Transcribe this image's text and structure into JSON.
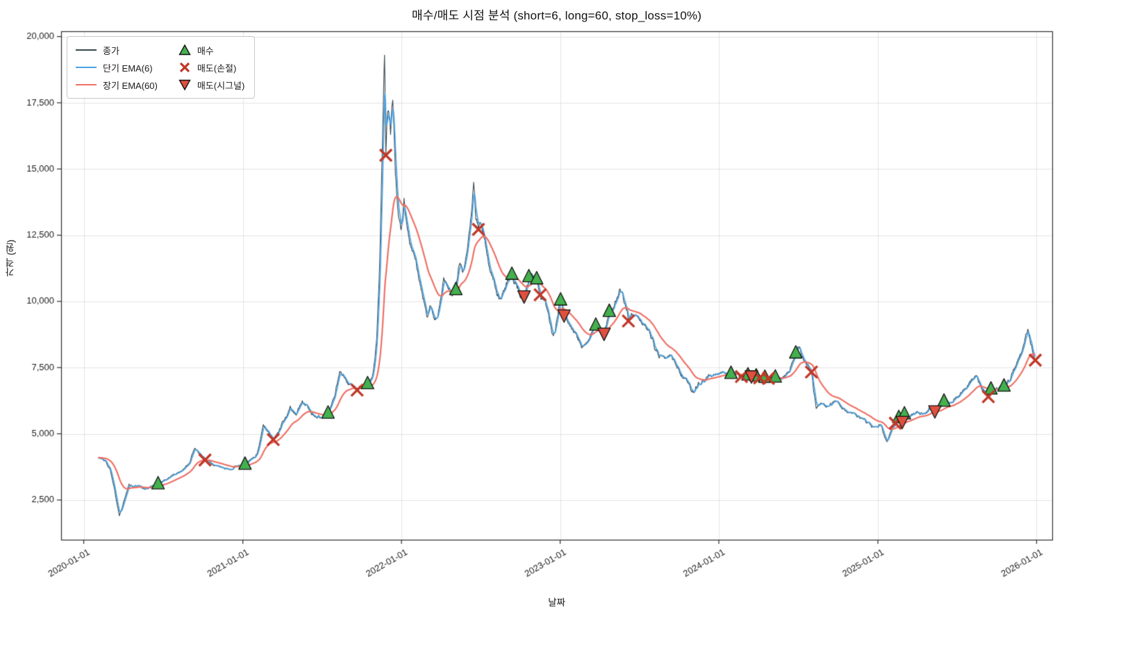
{
  "chart_data": {
    "type": "line",
    "title": "매수/매도 시점 분석 (short=6, long=60, stop_loss=10%)",
    "xlabel": "날짜",
    "ylabel": "가격 (원)",
    "xlim": [
      "2019-11-10",
      "2026-02-06"
    ],
    "ylim": [
      1000,
      20200
    ],
    "grid": true,
    "legend_position": "upper-left",
    "x_ticks": [
      {
        "v": "2020-01-01",
        "label": "2020-01-01"
      },
      {
        "v": "2021-01-01",
        "label": "2021-01-01"
      },
      {
        "v": "2022-01-01",
        "label": "2022-01-01"
      },
      {
        "v": "2023-01-01",
        "label": "2023-01-01"
      },
      {
        "v": "2024-01-01",
        "label": "2024-01-01"
      },
      {
        "v": "2025-01-01",
        "label": "2025-01-01"
      },
      {
        "v": "2026-01-01",
        "label": "2026-01-01"
      }
    ],
    "y_ticks": [
      {
        "v": 2500,
        "label": "2,500"
      },
      {
        "v": 5000,
        "label": "5,000"
      },
      {
        "v": 7500,
        "label": "7,500"
      },
      {
        "v": 10000,
        "label": "10,000"
      },
      {
        "v": 12500,
        "label": "12,500"
      },
      {
        "v": 15000,
        "label": "15,000"
      },
      {
        "v": 17500,
        "label": "17,500"
      },
      {
        "v": 20000,
        "label": "20,000"
      }
    ],
    "series": [
      {
        "id": "close",
        "name": "종가",
        "color": "#37474f",
        "width": 1.1,
        "kind": "price",
        "anchors": [
          [
            "2020-02-03",
            4100
          ],
          [
            "2020-02-12",
            4050
          ],
          [
            "2020-02-20",
            3980
          ],
          [
            "2020-03-02",
            3650
          ],
          [
            "2020-03-12",
            2900
          ],
          [
            "2020-03-23",
            1900
          ],
          [
            "2020-04-02",
            2450
          ],
          [
            "2020-04-14",
            3100
          ],
          [
            "2020-04-24",
            2980
          ],
          [
            "2020-05-08",
            3050
          ],
          [
            "2020-05-20",
            2900
          ],
          [
            "2020-06-03",
            3020
          ],
          [
            "2020-06-20",
            3120
          ],
          [
            "2020-07-03",
            3250
          ],
          [
            "2020-07-16",
            3350
          ],
          [
            "2020-08-01",
            3500
          ],
          [
            "2020-08-16",
            3650
          ],
          [
            "2020-09-01",
            3900
          ],
          [
            "2020-09-12",
            4450
          ],
          [
            "2020-09-22",
            4250
          ],
          [
            "2020-10-06",
            4010
          ],
          [
            "2020-10-18",
            3920
          ],
          [
            "2020-11-01",
            3800
          ],
          [
            "2020-11-15",
            3720
          ],
          [
            "2020-12-01",
            3650
          ],
          [
            "2020-12-16",
            3780
          ],
          [
            "2021-01-06",
            3860
          ],
          [
            "2021-01-20",
            4050
          ],
          [
            "2021-02-03",
            4250
          ],
          [
            "2021-02-17",
            5350
          ],
          [
            "2021-02-24",
            5150
          ],
          [
            "2021-03-12",
            4780
          ],
          [
            "2021-03-24",
            5050
          ],
          [
            "2021-04-06",
            5500
          ],
          [
            "2021-04-20",
            6050
          ],
          [
            "2021-05-04",
            5700
          ],
          [
            "2021-05-18",
            6250
          ],
          [
            "2021-06-01",
            5950
          ],
          [
            "2021-06-15",
            5650
          ],
          [
            "2021-07-01",
            5600
          ],
          [
            "2021-07-16",
            5790
          ],
          [
            "2021-08-01",
            6450
          ],
          [
            "2021-08-12",
            7350
          ],
          [
            "2021-08-24",
            7100
          ],
          [
            "2021-09-07",
            6900
          ],
          [
            "2021-09-21",
            6650
          ],
          [
            "2021-10-05",
            6800
          ],
          [
            "2021-10-15",
            6900
          ],
          [
            "2021-10-26",
            7150
          ],
          [
            "2021-11-05",
            8600
          ],
          [
            "2021-11-12",
            11500
          ],
          [
            "2021-11-18",
            15800
          ],
          [
            "2021-11-23",
            19300
          ],
          [
            "2021-11-26",
            15520
          ],
          [
            "2021-12-01",
            17200
          ],
          [
            "2021-12-07",
            16300
          ],
          [
            "2021-12-12",
            17600
          ],
          [
            "2021-12-18",
            14800
          ],
          [
            "2021-12-24",
            13400
          ],
          [
            "2021-12-31",
            12700
          ],
          [
            "2022-01-07",
            13900
          ],
          [
            "2022-01-14",
            12800
          ],
          [
            "2022-01-22",
            12100
          ],
          [
            "2022-02-01",
            11600
          ],
          [
            "2022-02-10",
            10800
          ],
          [
            "2022-02-19",
            10100
          ],
          [
            "2022-03-01",
            9400
          ],
          [
            "2022-03-10",
            9800
          ],
          [
            "2022-03-18",
            9300
          ],
          [
            "2022-03-28",
            9700
          ],
          [
            "2022-04-08",
            10900
          ],
          [
            "2022-04-18",
            10500
          ],
          [
            "2022-04-28",
            10200
          ],
          [
            "2022-05-06",
            10450
          ],
          [
            "2022-05-14",
            11400
          ],
          [
            "2022-05-22",
            11100
          ],
          [
            "2022-06-01",
            11900
          ],
          [
            "2022-06-10",
            13200
          ],
          [
            "2022-06-16",
            14500
          ],
          [
            "2022-06-21",
            13100
          ],
          [
            "2022-06-27",
            12720
          ],
          [
            "2022-07-03",
            12900
          ],
          [
            "2022-07-10",
            12400
          ],
          [
            "2022-07-18",
            11700
          ],
          [
            "2022-07-26",
            11100
          ],
          [
            "2022-08-05",
            10500
          ],
          [
            "2022-08-15",
            10100
          ],
          [
            "2022-08-25",
            10400
          ],
          [
            "2022-09-05",
            10800
          ],
          [
            "2022-09-12",
            11030
          ],
          [
            "2022-09-20",
            10750
          ],
          [
            "2022-09-28",
            10450
          ],
          [
            "2022-10-05",
            10300
          ],
          [
            "2022-10-10",
            10200
          ],
          [
            "2022-10-16",
            10600
          ],
          [
            "2022-10-21",
            10940
          ],
          [
            "2022-10-28",
            11050
          ],
          [
            "2022-11-08",
            10860
          ],
          [
            "2022-11-16",
            10250
          ],
          [
            "2022-11-24",
            10100
          ],
          [
            "2022-12-02",
            9700
          ],
          [
            "2022-12-10",
            9100
          ],
          [
            "2022-12-16",
            8700
          ],
          [
            "2022-12-23",
            9200
          ],
          [
            "2023-01-02",
            10060
          ],
          [
            "2023-01-10",
            9480
          ],
          [
            "2023-01-18",
            9250
          ],
          [
            "2023-01-26",
            9050
          ],
          [
            "2023-02-05",
            8800
          ],
          [
            "2023-02-15",
            8450
          ],
          [
            "2023-02-25",
            8350
          ],
          [
            "2023-03-07",
            8550
          ],
          [
            "2023-03-16",
            8850
          ],
          [
            "2023-03-24",
            9110
          ],
          [
            "2023-04-03",
            8950
          ],
          [
            "2023-04-12",
            8790
          ],
          [
            "2023-04-24",
            9630
          ],
          [
            "2023-05-04",
            9750
          ],
          [
            "2023-05-14",
            10150
          ],
          [
            "2023-05-22",
            10350
          ],
          [
            "2023-05-30",
            9900
          ],
          [
            "2023-06-07",
            9260
          ],
          [
            "2023-06-14",
            9550
          ],
          [
            "2023-06-22",
            9450
          ],
          [
            "2023-07-01",
            9350
          ],
          [
            "2023-07-12",
            9150
          ],
          [
            "2023-07-22",
            8950
          ],
          [
            "2023-08-01",
            8600
          ],
          [
            "2023-08-12",
            8150
          ],
          [
            "2023-08-22",
            7950
          ],
          [
            "2023-09-01",
            7850
          ],
          [
            "2023-09-12",
            7950
          ],
          [
            "2023-09-22",
            7700
          ],
          [
            "2023-10-03",
            7300
          ],
          [
            "2023-10-14",
            7100
          ],
          [
            "2023-10-25",
            6900
          ],
          [
            "2023-11-05",
            6550
          ],
          [
            "2023-11-15",
            6950
          ],
          [
            "2023-11-25",
            7050
          ],
          [
            "2023-12-05",
            7150
          ],
          [
            "2023-12-20",
            7250
          ],
          [
            "2024-01-10",
            7350
          ],
          [
            "2024-01-29",
            7290
          ],
          [
            "2024-02-10",
            7350
          ],
          [
            "2024-02-22",
            7160
          ],
          [
            "2024-03-01",
            7300
          ],
          [
            "2024-03-08",
            7230
          ],
          [
            "2024-03-16",
            7180
          ],
          [
            "2024-03-27",
            7190
          ],
          [
            "2024-04-04",
            7110
          ],
          [
            "2024-04-16",
            7140
          ],
          [
            "2024-04-24",
            7090
          ],
          [
            "2024-05-10",
            7150
          ],
          [
            "2024-05-25",
            7050
          ],
          [
            "2024-06-05",
            7300
          ],
          [
            "2024-06-18",
            7700
          ],
          [
            "2024-06-26",
            8060
          ],
          [
            "2024-07-03",
            8250
          ],
          [
            "2024-07-12",
            7900
          ],
          [
            "2024-07-22",
            7600
          ],
          [
            "2024-08-01",
            7330
          ],
          [
            "2024-08-06",
            6600
          ],
          [
            "2024-08-12",
            5950
          ],
          [
            "2024-08-25",
            6150
          ],
          [
            "2024-09-10",
            6050
          ],
          [
            "2024-09-25",
            6250
          ],
          [
            "2024-10-10",
            5950
          ],
          [
            "2024-10-25",
            5800
          ],
          [
            "2024-11-10",
            5750
          ],
          [
            "2024-11-25",
            5600
          ],
          [
            "2024-12-10",
            5450
          ],
          [
            "2024-12-24",
            5250
          ],
          [
            "2025-01-08",
            5350
          ],
          [
            "2025-01-22",
            4700
          ],
          [
            "2025-02-03",
            5250
          ],
          [
            "2025-02-10",
            5400
          ],
          [
            "2025-02-18",
            5620
          ],
          [
            "2025-02-26",
            5460
          ],
          [
            "2025-03-03",
            5760
          ],
          [
            "2025-03-15",
            5650
          ],
          [
            "2025-04-01",
            5850
          ],
          [
            "2025-04-15",
            5750
          ],
          [
            "2025-05-01",
            6000
          ],
          [
            "2025-05-12",
            5860
          ],
          [
            "2025-06-02",
            6240
          ],
          [
            "2025-06-15",
            6150
          ],
          [
            "2025-07-01",
            6400
          ],
          [
            "2025-07-15",
            6650
          ],
          [
            "2025-08-15",
            7200
          ],
          [
            "2025-08-25",
            6800
          ],
          [
            "2025-09-12",
            6400
          ],
          [
            "2025-09-18",
            6700
          ],
          [
            "2025-10-01",
            6750
          ],
          [
            "2025-10-18",
            6810
          ],
          [
            "2025-11-01",
            7000
          ],
          [
            "2025-11-15",
            7600
          ],
          [
            "2025-12-01",
            8300
          ],
          [
            "2025-12-12",
            8950
          ],
          [
            "2025-12-18",
            8400
          ],
          [
            "2025-12-24",
            8000
          ],
          [
            "2025-12-29",
            7780
          ]
        ]
      },
      {
        "id": "ema_short",
        "name": "단기 EMA(6)",
        "color": "#4ba3e3",
        "width": 1.7,
        "kind": "ema",
        "span": 6
      },
      {
        "id": "ema_long",
        "name": "장기 EMA(60)",
        "color": "#ef7065",
        "width": 2.2,
        "kind": "ema",
        "span": 60
      }
    ],
    "markers": [
      {
        "id": "buy",
        "name": "매수",
        "shape": "triangle-up",
        "color": "#44b04e",
        "edge": "#111111",
        "points": [
          [
            "2020-06-20",
            3120
          ],
          [
            "2021-01-06",
            3860
          ],
          [
            "2021-07-16",
            5790
          ],
          [
            "2021-10-15",
            6900
          ],
          [
            "2022-05-06",
            10450
          ],
          [
            "2022-09-12",
            11030
          ],
          [
            "2022-10-21",
            10940
          ],
          [
            "2022-11-08",
            10860
          ],
          [
            "2023-01-02",
            10060
          ],
          [
            "2023-03-24",
            9110
          ],
          [
            "2023-04-24",
            9630
          ],
          [
            "2024-01-29",
            7290
          ],
          [
            "2024-03-08",
            7230
          ],
          [
            "2024-03-27",
            7190
          ],
          [
            "2024-04-16",
            7140
          ],
          [
            "2024-05-10",
            7150
          ],
          [
            "2024-06-26",
            8060
          ],
          [
            "2025-02-18",
            5620
          ],
          [
            "2025-03-03",
            5760
          ],
          [
            "2025-06-02",
            6240
          ],
          [
            "2025-09-18",
            6700
          ],
          [
            "2025-10-18",
            6810
          ]
        ]
      },
      {
        "id": "sell_stop",
        "name": "매도(손절)",
        "shape": "x",
        "color": "#c13828",
        "edge": "#c13828",
        "points": [
          [
            "2020-10-06",
            4010
          ],
          [
            "2021-03-12",
            4780
          ],
          [
            "2021-09-21",
            6650
          ],
          [
            "2021-11-26",
            15520
          ],
          [
            "2022-06-27",
            12720
          ],
          [
            "2022-11-16",
            10250
          ],
          [
            "2023-06-07",
            9260
          ],
          [
            "2024-02-22",
            7160
          ],
          [
            "2024-04-04",
            7110
          ],
          [
            "2024-04-24",
            7090
          ],
          [
            "2024-08-01",
            7330
          ],
          [
            "2025-02-10",
            5400
          ],
          [
            "2025-09-12",
            6400
          ],
          [
            "2025-12-29",
            7780
          ]
        ]
      },
      {
        "id": "sell_signal",
        "name": "매도(시그널)",
        "shape": "triangle-down",
        "color": "#e0503f",
        "edge": "#111111",
        "points": [
          [
            "2022-10-10",
            10200
          ],
          [
            "2023-01-10",
            9480
          ],
          [
            "2023-04-12",
            8790
          ],
          [
            "2024-03-16",
            7180
          ],
          [
            "2025-02-26",
            5460
          ],
          [
            "2025-05-12",
            5860
          ]
        ]
      }
    ]
  }
}
